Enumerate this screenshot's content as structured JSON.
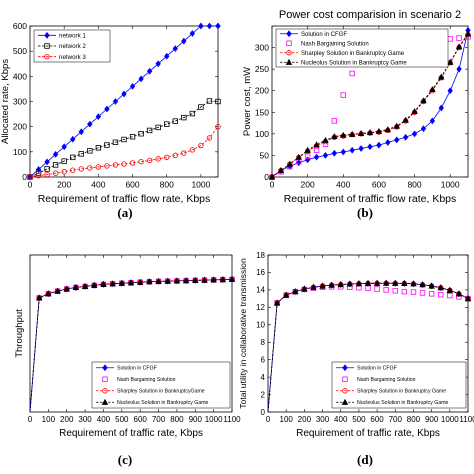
{
  "panels": [
    {
      "label": "(a)",
      "title": "",
      "xlabel": "Requirement of traffic flow rate, Kbps",
      "ylabel": "Allocated rate, Kbps",
      "xlim": [
        0,
        1100
      ],
      "ylim": [
        0,
        600
      ],
      "xticks": [
        0,
        200,
        400,
        600,
        800,
        1000
      ],
      "yticks": [
        0,
        100,
        200,
        300,
        400,
        500,
        600
      ],
      "legend_position": "top-left"
    },
    {
      "label": "(b)",
      "title": "Power cost comparision in scenario 2",
      "xlabel": "Requirement of traffic flow rate, Kbps",
      "ylabel": "Power cost, mW",
      "xlim": [
        0,
        1100
      ],
      "ylim": [
        0,
        350
      ],
      "xticks": [
        0,
        200,
        400,
        600,
        800,
        1000
      ],
      "yticks": [
        0,
        50,
        100,
        150,
        200,
        250,
        300
      ],
      "legend_position": "top-left"
    },
    {
      "label": "(c)",
      "title": "",
      "xlabel": "Requirement of traffic rate, Kbps",
      "ylabel": "Throughput",
      "xlim": [
        0,
        1100
      ],
      "ylim": [
        0,
        30
      ],
      "xticks": [
        0,
        100,
        200,
        300,
        400,
        500,
        600,
        700,
        800,
        900,
        1000,
        1100
      ],
      "yticks": [],
      "legend_position": "bottom-right"
    },
    {
      "label": "(d)",
      "title": "",
      "xlabel": "Requirement of traffic rate, Kbps",
      "ylabel": "Total utility in collaborative transmission",
      "xlim": [
        0,
        1100
      ],
      "ylim": [
        0,
        18
      ],
      "xticks": [
        0,
        100,
        200,
        300,
        400,
        500,
        600,
        700,
        800,
        900,
        1000,
        1100
      ],
      "yticks": [
        0,
        2,
        4,
        6,
        8,
        10,
        12,
        14,
        16,
        18
      ],
      "legend_position": "bottom-right"
    }
  ],
  "chart_data": [
    {
      "type": "line",
      "title": "",
      "xlabel": "Requirement of traffic flow rate, Kbps",
      "ylabel": "Allocated rate, Kbps",
      "xlim": [
        0,
        1100
      ],
      "ylim": [
        0,
        600
      ],
      "legend": "top-left",
      "x": [
        0,
        50,
        100,
        150,
        200,
        250,
        300,
        350,
        400,
        450,
        500,
        550,
        600,
        650,
        700,
        750,
        800,
        850,
        900,
        950,
        1000,
        1050,
        1100
      ],
      "series": [
        {
          "name": "network 1",
          "color": "#0000ff",
          "marker": "diamond",
          "values": [
            0,
            30,
            60,
            90,
            120,
            150,
            180,
            210,
            240,
            270,
            300,
            330,
            360,
            390,
            420,
            450,
            480,
            510,
            540,
            570,
            600,
            600,
            600
          ]
        },
        {
          "name": "network 2",
          "color": "#000000",
          "marker": "square",
          "values": [
            0,
            15,
            32,
            48,
            63,
            78,
            92,
            104,
            116,
            127,
            138,
            149,
            160,
            172,
            185,
            197,
            210,
            222,
            236,
            252,
            278,
            302,
            300
          ]
        },
        {
          "name": "network 3",
          "color": "#ff0000",
          "marker": "circle",
          "values": [
            0,
            5,
            10,
            15,
            21,
            27,
            32,
            36,
            40,
            44,
            48,
            52,
            56,
            61,
            66,
            72,
            78,
            86,
            95,
            108,
            125,
            155,
            200
          ]
        }
      ]
    },
    {
      "type": "line",
      "title": "Power cost comparision in scenario 2",
      "xlabel": "Requirement of traffic flow rate, Kbps",
      "ylabel": "Power cost, mW",
      "xlim": [
        0,
        1100
      ],
      "ylim": [
        0,
        350
      ],
      "legend": "top-left",
      "x": [
        0,
        50,
        100,
        150,
        200,
        250,
        300,
        350,
        400,
        450,
        500,
        550,
        600,
        650,
        700,
        750,
        800,
        850,
        900,
        950,
        1000,
        1050,
        1100
      ],
      "series": [
        {
          "name": "Solution in CFGF",
          "color": "#0000ff",
          "marker": "diamond",
          "values": [
            0,
            15,
            25,
            33,
            40,
            46,
            50,
            55,
            58,
            62,
            66,
            70,
            74,
            80,
            86,
            92,
            100,
            112,
            130,
            160,
            200,
            250,
            340
          ]
        },
        {
          "name": "Nash Bargaining Solution",
          "color": "#ff00ff",
          "marker": "square",
          "values": [
            0,
            12,
            24,
            36,
            48,
            62,
            76,
            130,
            190,
            240,
            270,
            282,
            288,
            293,
            297,
            300,
            304,
            308,
            312,
            316,
            320,
            322,
            325
          ]
        },
        {
          "name": "Sharpley Solution in Bankruptcy Game",
          "color": "#ff0000",
          "marker": "circle",
          "values": [
            0,
            15,
            30,
            45,
            60,
            72,
            82,
            92,
            95,
            98,
            100,
            102,
            104,
            108,
            116,
            130,
            150,
            175,
            200,
            230,
            265,
            300,
            330
          ]
        },
        {
          "name": "Nucleolus Solution in Bankruptcy Game",
          "color": "#000000",
          "marker": "triangle",
          "values": [
            0,
            15,
            30,
            46,
            62,
            75,
            85,
            94,
            97,
            99,
            101,
            103,
            106,
            110,
            118,
            132,
            152,
            177,
            203,
            232,
            266,
            302,
            332
          ]
        }
      ]
    },
    {
      "type": "line",
      "title": "",
      "xlabel": "Requirement of traffic rate, Kbps",
      "ylabel": "Throughput",
      "xlim": [
        0,
        1100
      ],
      "ylim": [
        0,
        30
      ],
      "legend": "bottom-right",
      "x": [
        0,
        50,
        100,
        150,
        200,
        250,
        300,
        350,
        400,
        450,
        500,
        550,
        600,
        650,
        700,
        750,
        800,
        850,
        900,
        950,
        1000,
        1050,
        1100
      ],
      "series": [
        {
          "name": "Solution in CFGF",
          "color": "#0000ff",
          "marker": "diamond",
          "values": [
            0,
            21.8,
            22.6,
            23.1,
            23.5,
            23.8,
            24.0,
            24.2,
            24.4,
            24.5,
            24.6,
            24.7,
            24.8,
            24.9,
            24.95,
            25.0,
            25.05,
            25.1,
            25.15,
            25.2,
            25.25,
            25.3,
            25.35
          ]
        },
        {
          "name": "Nash Bargaining Solution",
          "color": "#ff00ff",
          "marker": "square",
          "values": [
            0,
            21.8,
            22.6,
            23.1,
            23.5,
            23.8,
            24.0,
            24.2,
            24.4,
            24.5,
            24.6,
            24.7,
            24.8,
            24.9,
            24.95,
            25.0,
            25.05,
            25.1,
            25.15,
            25.2,
            25.25,
            25.3,
            25.35
          ]
        },
        {
          "name": "Sharpley Solution in BankruptcyGame",
          "color": "#ff0000",
          "marker": "circle",
          "values": [
            0,
            21.8,
            22.6,
            23.1,
            23.5,
            23.8,
            24.0,
            24.2,
            24.4,
            24.5,
            24.6,
            24.7,
            24.8,
            24.9,
            24.95,
            25.0,
            25.05,
            25.1,
            25.15,
            25.2,
            25.25,
            25.3,
            25.35
          ]
        },
        {
          "name": "Nucleolus Solution in Bankruptcy Game",
          "color": "#000000",
          "marker": "triangle",
          "values": [
            0,
            21.8,
            22.6,
            23.1,
            23.5,
            23.8,
            24.0,
            24.2,
            24.4,
            24.5,
            24.6,
            24.7,
            24.8,
            24.9,
            24.95,
            25.0,
            25.05,
            25.1,
            25.15,
            25.2,
            25.25,
            25.3,
            25.35
          ]
        }
      ]
    },
    {
      "type": "line",
      "title": "",
      "xlabel": "Requirement of traffic rate, Kbps",
      "ylabel": "Total utility in collaborative transmission",
      "xlim": [
        0,
        1100
      ],
      "ylim": [
        0,
        18
      ],
      "legend": "bottom-right",
      "x": [
        0,
        50,
        100,
        150,
        200,
        250,
        300,
        350,
        400,
        450,
        500,
        550,
        600,
        650,
        700,
        750,
        800,
        850,
        900,
        950,
        1000,
        1050,
        1100
      ],
      "series": [
        {
          "name": "Solution in CFGF",
          "color": "#0000ff",
          "marker": "diamond",
          "values": [
            0,
            12.5,
            13.4,
            13.8,
            14.1,
            14.3,
            14.45,
            14.55,
            14.62,
            14.68,
            14.72,
            14.75,
            14.76,
            14.77,
            14.76,
            14.74,
            14.7,
            14.6,
            14.45,
            14.25,
            13.95,
            13.55,
            13.0
          ]
        },
        {
          "name": "Nash Bargaining Solution",
          "color": "#ff00ff",
          "marker": "square",
          "values": [
            0,
            12.5,
            13.4,
            13.8,
            14.05,
            14.2,
            14.3,
            14.35,
            14.35,
            14.3,
            14.25,
            14.2,
            14.1,
            14.0,
            13.9,
            13.8,
            13.75,
            13.65,
            13.55,
            13.45,
            13.35,
            13.2,
            13.0
          ]
        },
        {
          "name": "Sharpley Solution in Bankruptcy Game",
          "color": "#ff0000",
          "marker": "circle",
          "values": [
            0,
            12.5,
            13.4,
            13.8,
            14.1,
            14.3,
            14.45,
            14.55,
            14.62,
            14.68,
            14.72,
            14.75,
            14.76,
            14.77,
            14.76,
            14.74,
            14.7,
            14.6,
            14.45,
            14.25,
            13.95,
            13.55,
            13.0
          ]
        },
        {
          "name": "Nucleolus Solution in Bankruptcy Game",
          "color": "#000000",
          "marker": "triangle",
          "values": [
            0,
            12.5,
            13.4,
            13.8,
            14.1,
            14.3,
            14.45,
            14.55,
            14.62,
            14.68,
            14.72,
            14.75,
            14.76,
            14.77,
            14.76,
            14.74,
            14.7,
            14.6,
            14.45,
            14.25,
            13.95,
            13.55,
            13.0
          ]
        }
      ]
    }
  ]
}
